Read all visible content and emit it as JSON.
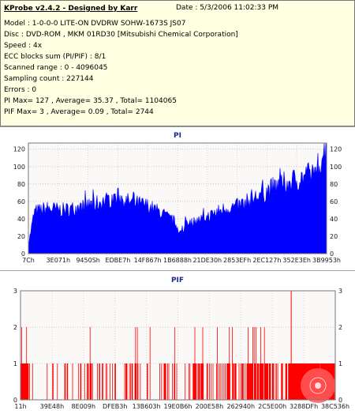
{
  "info": {
    "title": "KProbe v2.4.2 - Designed by Karr",
    "date": "Date : 5/3/2006 11:02:33 PM",
    "lines": [
      "Model : 1-0-0-0 LITE-ON DVDRW SOHW-1673S JS07",
      "Disc : DVD-ROM , MKM 01RD30  [Mitsubishi Chemical Corporation]",
      "Speed : 4x",
      "ECC blocks sum (PI/PIF) : 8/1",
      "Scanned range : 0 - 4096045",
      "Sampling count : 227144",
      "Errors : 0",
      "PI Max= 127 , Average= 35.37 , Total= 1104065",
      "PIF Max= 3 , Average= 0.09 , Total= 2744"
    ]
  },
  "chart_data": [
    {
      "type": "area",
      "title": "PI",
      "ylim": [
        0,
        127
      ],
      "yticks": [
        0,
        20,
        40,
        60,
        80,
        100,
        120
      ],
      "xticks": [
        "7Ch",
        "3E071h",
        "9450Sh",
        "EDBE7h",
        "14F867h",
        "1B6888h",
        "21DE30h",
        "2853EFh",
        "2EC127h",
        "352E3Eh",
        "3B9953h"
      ],
      "color": "#0000ff",
      "grid": true,
      "profile": [
        [
          0,
          10
        ],
        [
          0.02,
          48
        ],
        [
          0.06,
          52
        ],
        [
          0.12,
          50
        ],
        [
          0.2,
          55
        ],
        [
          0.27,
          62
        ],
        [
          0.3,
          66
        ],
        [
          0.33,
          60
        ],
        [
          0.4,
          55
        ],
        [
          0.45,
          46
        ],
        [
          0.49,
          36
        ],
        [
          0.51,
          25
        ],
        [
          0.52,
          20
        ],
        [
          0.525,
          40
        ],
        [
          0.55,
          36
        ],
        [
          0.6,
          42
        ],
        [
          0.66,
          52
        ],
        [
          0.7,
          54
        ],
        [
          0.75,
          62
        ],
        [
          0.8,
          72
        ],
        [
          0.85,
          80
        ],
        [
          0.9,
          85
        ],
        [
          0.94,
          90
        ],
        [
          0.97,
          100
        ],
        [
          0.99,
          118
        ],
        [
          1.0,
          127
        ]
      ]
    },
    {
      "type": "bar",
      "title": "PIF",
      "ylim": [
        0,
        3
      ],
      "yticks": [
        0,
        1,
        2,
        3
      ],
      "xticks": [
        "11h",
        "39E48h",
        "8E009h",
        "DFEB3h",
        "13B603h",
        "19E0B6h",
        "200E58h",
        "262940h",
        "2C5E00h",
        "3288DFh",
        "38C536h"
      ],
      "color": "#ff0000",
      "grid": true,
      "max_at": 0.86
    }
  ]
}
